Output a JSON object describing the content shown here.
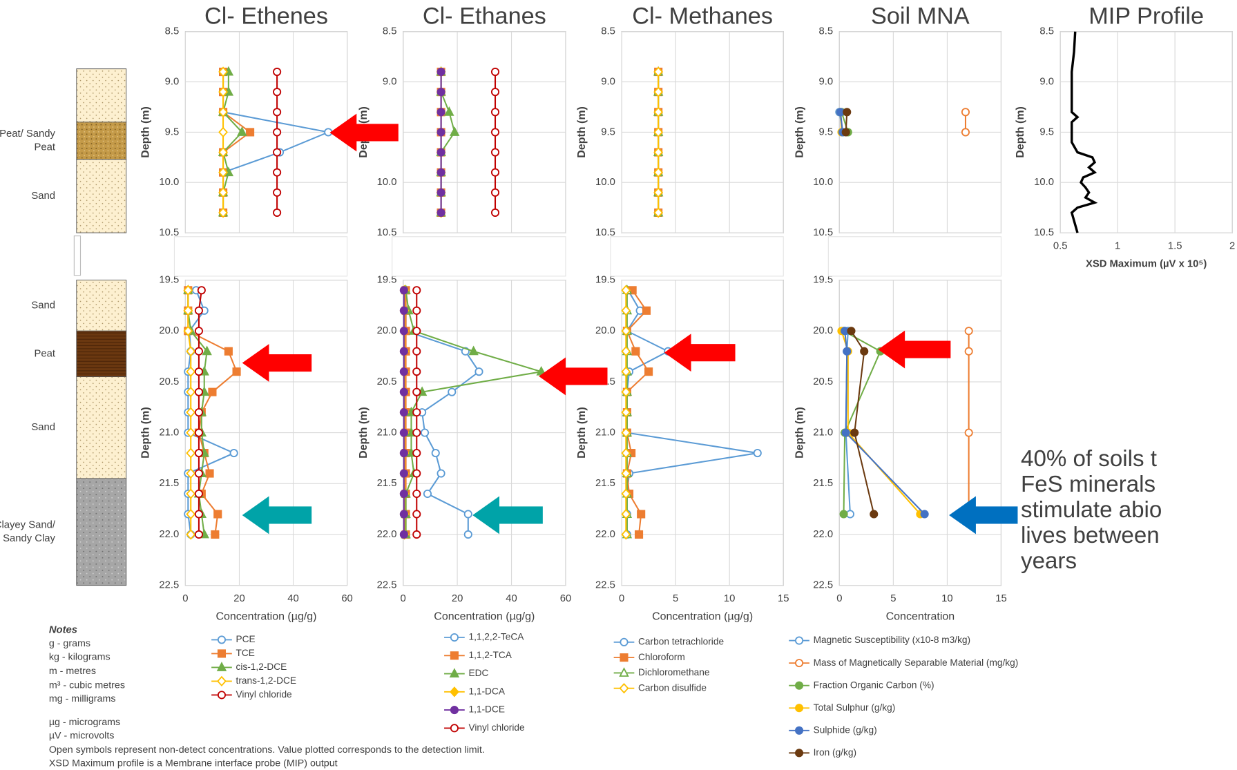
{
  "depth_axis": {
    "ylim_top": [
      10.5,
      8.5
    ],
    "yticks_top": [
      8.5,
      {
        "value": 9,
        "label": "9.0"
      },
      9.5,
      {
        "value": 10,
        "label": "10.0"
      },
      10.5
    ],
    "ylim_bottom": [
      22.5,
      19.5
    ],
    "yticks_bottom": [
      19.5,
      {
        "value": 20,
        "label": "20.0"
      },
      20.5,
      {
        "value": 21,
        "label": "21.0"
      },
      21.5,
      {
        "value": 22,
        "label": "22.0"
      },
      22.5
    ]
  },
  "chart_data": [
    {
      "type": "line",
      "title": "Cl- Ethenes",
      "xlabel": "Concentration (µg/g)",
      "ylabel": "Depth (m)",
      "broken_axis": true,
      "legend": true,
      "grid": true,
      "xlim": [
        0,
        60
      ],
      "xticks": [
        0,
        20,
        40,
        60
      ],
      "depths": [
        8.9,
        9.1,
        9.3,
        9.5,
        9.7,
        9.9,
        10.1,
        10.3,
        19.6,
        19.8,
        20.0,
        20.2,
        20.4,
        20.6,
        20.8,
        21.0,
        21.2,
        21.4,
        21.6,
        21.8,
        22.0
      ],
      "series": [
        {
          "name": "PCE",
          "color": "#5b9bd5",
          "marker": "circle",
          "filled": false,
          "values": [
            14,
            14,
            14,
            53,
            35,
            14,
            14,
            14,
            4,
            7,
            1.5,
            2,
            1,
            1,
            1,
            1,
            18,
            1,
            1,
            1,
            2
          ]
        },
        {
          "name": "TCE",
          "color": "#ed7d31",
          "marker": "square",
          "filled": true,
          "values": [
            14,
            14,
            14,
            24,
            14,
            14,
            14,
            14,
            1,
            1,
            1,
            16,
            19,
            10,
            6,
            5,
            7,
            9,
            6,
            12,
            11
          ]
        },
        {
          "name": "cis-1,2-DCE",
          "color": "#70ad47",
          "marker": "triangle",
          "filled": true,
          "values": [
            16,
            16,
            14,
            21,
            14,
            16,
            14,
            14,
            1,
            1,
            2,
            8,
            7,
            7,
            6,
            6,
            7,
            6,
            5,
            6,
            7
          ]
        },
        {
          "name": "trans-1,2-DCE",
          "color": "#ffc000",
          "marker": "diamond",
          "filled": false,
          "values": [
            14,
            14,
            14,
            14,
            14,
            14,
            14,
            14,
            1,
            1,
            1,
            2,
            2,
            2,
            2,
            2,
            2,
            2,
            2,
            2,
            2
          ]
        },
        {
          "name": "Vinyl chloride",
          "color": "#c00000",
          "marker": "circle",
          "filled": false,
          "values": [
            34,
            34,
            34,
            34,
            34,
            34,
            34,
            34,
            6,
            5,
            5,
            5,
            5,
            5,
            5,
            5,
            5,
            5,
            5,
            5,
            5
          ]
        }
      ]
    },
    {
      "type": "line",
      "title": "Cl- Ethanes",
      "xlabel": "Concentration (µg/g)",
      "ylabel": "Depth (m)",
      "broken_axis": true,
      "legend": true,
      "grid": true,
      "xlim": [
        0,
        60
      ],
      "xticks": [
        0,
        20,
        40,
        60
      ],
      "depths": [
        8.9,
        9.1,
        9.3,
        9.5,
        9.7,
        9.9,
        10.1,
        10.3,
        19.6,
        19.8,
        20.0,
        20.2,
        20.4,
        20.6,
        20.8,
        21.0,
        21.2,
        21.4,
        21.6,
        21.8,
        22.0
      ],
      "series": [
        {
          "name": "1,1,2,2-TeCA",
          "color": "#5b9bd5",
          "marker": "circle",
          "filled": false,
          "values": [
            14,
            14,
            14,
            14,
            14,
            14,
            14,
            14,
            1,
            1,
            1,
            23,
            28,
            18,
            7,
            8,
            12,
            14,
            9,
            24,
            24
          ]
        },
        {
          "name": "1,1,2-TCA",
          "color": "#ed7d31",
          "marker": "square",
          "filled": true,
          "values": [
            14,
            14,
            14,
            14,
            14,
            14,
            14,
            14,
            1,
            1,
            1,
            1,
            1,
            1,
            1,
            1,
            1,
            1,
            1,
            1,
            1
          ]
        },
        {
          "name": "EDC",
          "color": "#70ad47",
          "marker": "triangle",
          "filled": true,
          "values": [
            14,
            14,
            17,
            19,
            14,
            14,
            14,
            14,
            1,
            2,
            4,
            26,
            51,
            7,
            3,
            3,
            3,
            4,
            1,
            1,
            1
          ]
        },
        {
          "name": "1,1-DCA",
          "color": "#ffc000",
          "marker": "diamond",
          "filled": true,
          "values": [
            14,
            14,
            14,
            14,
            14,
            14,
            14,
            14,
            0.5,
            0.5,
            0.5,
            0.5,
            0.5,
            0.5,
            0.5,
            0.5,
            0.5,
            0.5,
            0.5,
            0.5,
            0.5
          ]
        },
        {
          "name": "1,1-DCE",
          "color": "#7030a0",
          "marker": "circle",
          "filled": true,
          "values": [
            14,
            14,
            14,
            14,
            14,
            14,
            14,
            14,
            0.3,
            0.3,
            0.3,
            0.3,
            0.3,
            0.3,
            0.3,
            0.3,
            0.3,
            0.3,
            0.3,
            0.3,
            0.3
          ]
        },
        {
          "name": "Vinyl chloride",
          "color": "#c00000",
          "marker": "circle",
          "filled": false,
          "values": [
            34,
            34,
            34,
            34,
            34,
            34,
            34,
            34,
            5,
            5,
            5,
            5,
            5,
            5,
            5,
            5,
            5,
            5,
            5,
            5,
            5
          ]
        }
      ]
    },
    {
      "type": "line",
      "title": "Cl- Methanes",
      "xlabel": "Concentration (µg/g)",
      "ylabel": "Depth (m)",
      "broken_axis": true,
      "legend": true,
      "grid": true,
      "xlim": [
        0,
        15
      ],
      "xticks": [
        0,
        5,
        10,
        15
      ],
      "depths": [
        8.9,
        9.1,
        9.3,
        9.5,
        9.7,
        9.9,
        10.1,
        10.3,
        19.6,
        19.8,
        20.0,
        20.2,
        20.4,
        20.6,
        20.8,
        21.0,
        21.2,
        21.4,
        21.6,
        21.8,
        22.0
      ],
      "series": [
        {
          "name": "Carbon tetrachloride",
          "color": "#5b9bd5",
          "marker": "circle",
          "filled": false,
          "values": [
            3.4,
            3.4,
            3.4,
            3.4,
            3.4,
            3.4,
            3.4,
            3.4,
            0.6,
            1.7,
            0.5,
            4.3,
            0.7,
            0.5,
            0.5,
            0.5,
            12.6,
            0.7,
            0.5,
            0.5,
            0.5
          ]
        },
        {
          "name": "Chloroform",
          "color": "#ed7d31",
          "marker": "square",
          "filled": true,
          "values": [
            3.4,
            3.4,
            3.4,
            3.4,
            3.4,
            3.4,
            3.4,
            3.4,
            1,
            2.3,
            0.5,
            1.3,
            2.5,
            0.5,
            0.5,
            0.5,
            0.9,
            0.5,
            0.7,
            1.8,
            1.6
          ]
        },
        {
          "name": "Dichloromethane",
          "color": "#70ad47",
          "marker": "triangle",
          "filled": false,
          "values": [
            3.4,
            3.4,
            3.4,
            3.4,
            3.4,
            3.4,
            3.4,
            3.4,
            0.5,
            0.5,
            0.5,
            0.5,
            0.5,
            0.5,
            0.5,
            0.5,
            0.5,
            0.5,
            0.5,
            0.5,
            0.5
          ]
        },
        {
          "name": "Carbon disulfide",
          "color": "#ffc000",
          "marker": "diamond",
          "filled": false,
          "values": [
            3.4,
            3.4,
            3.4,
            3.4,
            3.4,
            3.4,
            3.4,
            3.4,
            0.4,
            0.4,
            0.4,
            0.4,
            0.4,
            0.4,
            0.4,
            0.4,
            0.4,
            0.4,
            0.4,
            0.4,
            0.4
          ]
        }
      ]
    },
    {
      "type": "line",
      "title": "Soil MNA",
      "xlabel": "Concentration",
      "ylabel": "Depth (m)",
      "broken_axis": true,
      "legend": true,
      "grid": true,
      "xlim": [
        0,
        15
      ],
      "xticks": [
        0,
        5,
        10,
        15
      ],
      "depths": [
        9.3,
        9.5,
        20.0,
        20.2,
        21.0,
        21.8
      ],
      "series": [
        {
          "name": "Magnetic Susceptibility (x10-8 m3/kg)",
          "color": "#5b9bd5",
          "marker": "circle",
          "filled": false,
          "values": [
            0,
            0.3,
            0.8,
            0.7,
            0.6,
            1.0
          ]
        },
        {
          "name": "Mass of Magnetically Separable Material (mg/kg)",
          "color": "#ed7d31",
          "marker": "circle",
          "filled": false,
          "values": [
            11.7,
            11.7,
            12,
            12,
            12,
            12
          ]
        },
        {
          "name": "Fraction Organic Carbon (%)",
          "color": "#70ad47",
          "marker": "circle",
          "filled": true,
          "values": [
            0.2,
            0.8,
            0.4,
            3.8,
            0.5,
            0.4
          ]
        },
        {
          "name": "Total Sulphur (g/kg)",
          "color": "#ffc000",
          "marker": "circle",
          "filled": true,
          "values": [
            0.1,
            0.2,
            0.2,
            0.8,
            0.8,
            7.5
          ]
        },
        {
          "name": "Sulphide (g/kg)",
          "color": "#4472c4",
          "marker": "circle",
          "filled": true,
          "values": [
            0.1,
            0.3,
            0.5,
            0.7,
            0.6,
            7.9
          ]
        },
        {
          "name": "Iron (g/kg)",
          "color": "#6b3a10",
          "marker": "circle",
          "filled": true,
          "values": [
            0.7,
            0.6,
            1.1,
            2.3,
            1.4,
            3.2
          ]
        }
      ]
    },
    {
      "type": "line",
      "title": "MIP Profile",
      "xlabel": "XSD Maximum (µV x 10⁵)",
      "ylabel": "Depth (m)",
      "broken_axis": false,
      "legend": false,
      "grid": true,
      "xlim": [
        0.5,
        2
      ],
      "xticks": [
        0.5,
        1,
        1.5,
        2
      ],
      "depths": [
        8.5,
        8.7,
        8.9,
        9.1,
        9.3,
        9.35,
        9.4,
        9.6,
        9.7,
        9.75,
        9.8,
        9.85,
        9.9,
        9.95,
        10.0,
        10.05,
        10.1,
        10.15,
        10.2,
        10.25,
        10.3,
        10.5
      ],
      "series": [
        {
          "name": "XSD Maximum",
          "color": "#000000",
          "marker": "none",
          "filled": false,
          "values": [
            0.63,
            0.62,
            0.6,
            0.6,
            0.6,
            0.65,
            0.6,
            0.6,
            0.65,
            0.78,
            0.8,
            0.75,
            0.8,
            0.7,
            0.68,
            0.72,
            0.75,
            0.72,
            0.8,
            0.65,
            0.6,
            0.65
          ]
        }
      ]
    }
  ],
  "lithology": [
    {
      "top": 8.87,
      "bottom": 9.4,
      "fill": "sand"
    },
    {
      "top": 9.4,
      "bottom": 9.77,
      "fill": "sandy-peat",
      "label": [
        "Peat/ Sandy",
        "Peat"
      ]
    },
    {
      "top": 9.77,
      "bottom": 10.5,
      "fill": "sand",
      "label": [
        "Sand"
      ]
    },
    {
      "top": 19.5,
      "bottom": 20.0,
      "fill": "sand",
      "label": [
        "Sand"
      ]
    },
    {
      "top": 20.0,
      "bottom": 20.45,
      "fill": "peat",
      "label": [
        "Peat"
      ]
    },
    {
      "top": 20.45,
      "bottom": 21.45,
      "fill": "sand",
      "label": [
        "Sand"
      ]
    },
    {
      "top": 21.45,
      "bottom": 22.5,
      "fill": "clay",
      "label": [
        "Clayey Sand/",
        "Sandy Clay"
      ]
    }
  ],
  "notes": {
    "title": "Notes",
    "lines": [
      "g - grams",
      "kg - kilograms",
      "m - metres",
      "m³ - cubic metres",
      "mg - milligrams",
      "µg - micrograms",
      "µV - microvolts",
      "Open symbols represent non-detect concentrations.  Value plotted corresponds to the detection limit.",
      "XSD Maximum profile is a Membrane interface probe (MIP) output"
    ]
  },
  "annotation": [
    "40% of soils t",
    "FeS minerals",
    "stimulate abio",
    "lives between",
    "years"
  ]
}
